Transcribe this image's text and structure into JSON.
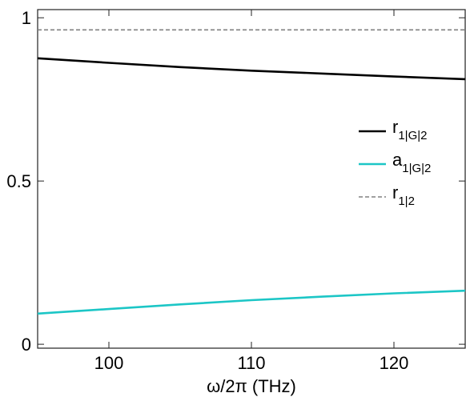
{
  "chart_data": {
    "type": "line",
    "xlabel": "ω/2π (THz)",
    "ylabel": "",
    "xlim": [
      95,
      125
    ],
    "ylim": [
      -0.012,
      1.025
    ],
    "xticks": [
      "100",
      "110",
      "120"
    ],
    "xtick_values": [
      100,
      110,
      120
    ],
    "yticks": [
      "0",
      "0.5",
      "1"
    ],
    "ytick_values": [
      0,
      0.5,
      1
    ],
    "grid": false,
    "legend_position": "right",
    "series": [
      {
        "name_main": "r",
        "name_sub": "1|G|2",
        "color": "#000000",
        "dash": "solid",
        "x": [
          95,
          100,
          105,
          110,
          115,
          120,
          125
        ],
        "y": [
          0.876,
          0.862,
          0.849,
          0.838,
          0.829,
          0.82,
          0.812
        ]
      },
      {
        "name_main": "a",
        "name_sub": "1|G|2",
        "color": "#1cc6c6",
        "dash": "solid",
        "x": [
          95,
          100,
          105,
          110,
          115,
          120,
          125
        ],
        "y": [
          0.094,
          0.108,
          0.122,
          0.135,
          0.146,
          0.156,
          0.164
        ]
      },
      {
        "name_main": "r",
        "name_sub": "1|2",
        "color": "#808080",
        "dash": "dashed",
        "x": [
          95,
          125
        ],
        "y": [
          0.963,
          0.963
        ]
      }
    ]
  }
}
